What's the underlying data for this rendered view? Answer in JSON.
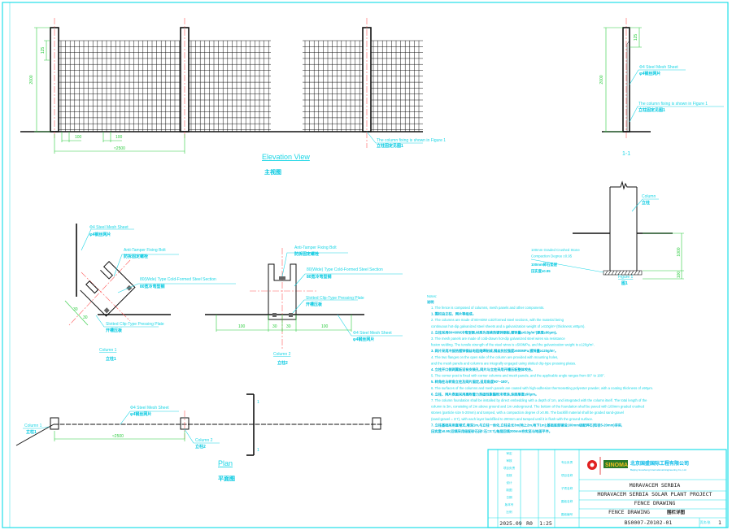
{
  "elevation": {
    "title": "Elevation View",
    "title_cn": "主视图",
    "dim_height": "2000",
    "dim_top": "125",
    "dim_grid_1": "100",
    "dim_grid_2": "100",
    "dim_span": "≈2500",
    "fixing_label": "The column fixing is shown in Figure 1",
    "fixing_label_cn": "立柱固定见图1"
  },
  "section_1_1": {
    "title": "1-1",
    "dim_height": "2000",
    "dim_top": "125",
    "mesh_label": "Φ4 Steel Mesh Sheet",
    "mesh_label_cn": "φ4钢丝网片",
    "fixing_label": "The column fixing is shown in Figure 1",
    "fixing_label_cn": "立柱固定见图1"
  },
  "figure_1": {
    "title": "Figure 1",
    "title_cn": "图1",
    "column_label": "Column",
    "column_label_cn": "立柱",
    "base_label_1": "100mm Graded Crushed Stone",
    "base_label_2": "Compaction Degree ≥0.95",
    "base_label_cn_1": "100mm碎石垫层",
    "base_label_cn_2": "压实度≥0.95",
    "dim_depth": "1000",
    "dim_base": "100"
  },
  "column_1": {
    "title": "Column 1",
    "title_cn": "立柱1",
    "mesh_label": "Φ4 Steel Mesh Sheet",
    "mesh_label_cn": "φ4钢丝网片",
    "bolt_label": "Anti-Tamper Fixing Bolt",
    "bolt_label_cn": "防拆固定螺栓",
    "section_label": "80(Wide) Type Cold-Formed Steel Section",
    "section_label_cn": "80宽冷弯型钢",
    "plate_label": "Slotted Clip-Type Pressing Plate",
    "plate_label_cn": "开槽压板",
    "dim_a": "30",
    "dim_b": "30"
  },
  "column_2": {
    "title": "Column 2",
    "title_cn": "立柱2",
    "bolt_label": "Anti-Tamper Fixing Bolt",
    "bolt_label_cn": "防拆固定螺栓",
    "section_label": "80(Wide) Type Cold-Formed Steel Section",
    "section_label_cn": "80宽冷弯型钢",
    "plate_label": "Slotted Clip-Type Pressing Plate",
    "plate_label_cn": "开槽压板",
    "mesh_label": "Φ4 Steel Mesh Sheet",
    "mesh_label_cn": "φ4钢丝网片",
    "dims": [
      "100",
      "30",
      "30",
      "100"
    ]
  },
  "plan": {
    "title": "Plan",
    "title_cn": "平面图",
    "mesh_label": "Φ4 Steel Mesh Sheet",
    "mesh_label_cn": "φ4钢丝网片",
    "column_1": "Column 1",
    "column_1_cn": "立柱1",
    "column_2": "Column 2",
    "column_2_cn": "立柱2",
    "dim_span": "≈2500",
    "section_mark": "1"
  },
  "notes": {
    "title": "Notes:",
    "title_cn": "说明",
    "lines": [
      {
        "t": "1. The fence is composed of columns, mesh panels and other components.",
        "b": false
      },
      {
        "t": "1. 围栏由立柱、网片等组成。",
        "b": true
      },
      {
        "t": "2. The columns are made of 80×60W cold-formed steel sections, with the material being",
        "b": false
      },
      {
        "t": "    continuous hot-dip galvanized steel sheets and a galvanization weight of ≥410g/m² (thickness ≥80μm).",
        "b": false
      },
      {
        "t": "2. 立柱采用80×60W冷弯型钢,材质为连续热镀锌钢板,镀锌量≥410g/m²(厚度≥80μm)。",
        "b": true
      },
      {
        "t": "3. The mesh panels are made of cold-drawn hot-dip galvanized steel wires via resistance",
        "b": false
      },
      {
        "t": "    fusion welding. The tensile strength of the steel wires is ≥500MPa, and the galvanization weight is ≥120g/m².",
        "b": false
      },
      {
        "t": "3. 网片采用冷拔热镀锌钢丝电阻熔焊制成,钢丝抗拉强度≥500MPa,镀锌量≥120g/m²。",
        "b": true
      },
      {
        "t": "4. The two flanges on the open side of the column are provided with mounting holes,",
        "b": false
      },
      {
        "t": "    and the mesh panels and columns are integrally engaged using slotted clip-type pressing plates.",
        "b": false
      },
      {
        "t": "4. 立柱开口侧两翼板设有安装孔,网片与立柱采用开槽压板整体咬合。",
        "b": true
      },
      {
        "t": "5. The corner post is fixed with corner columns and mesh panels, and the applicable angle ranges from 90° to 180°.",
        "b": false
      },
      {
        "t": "5. 转角柱与转角立柱及网片固定,适用角度90°~180°。",
        "b": true
      },
      {
        "t": "6. The surfaces of the columns and mesh panels are coated with high-adhesion thermosetting polyester powder, with a coating thickness of ≥90μm.",
        "b": false
      },
      {
        "t": "6. 立柱、网片表面采用高附着力热固性聚酯粉末喷涂,涂层厚度≥90μm。",
        "b": true
      },
      {
        "t": "7. The column foundation shall be installed by direct embedding with a depth of 1m, and integrated with the column itself. The total length of the",
        "b": false
      },
      {
        "t": "    column is 3m, consisting of 2m above ground and 1m underground. The bottom of the foundation shall be paved with 100mm graded crushed",
        "b": false
      },
      {
        "t": "    stones (particle size 5-20mm) and tamped, with a compaction degree of ≥0.95. The backfill material shall be graded sand-gravel",
        "b": false
      },
      {
        "t": "    (sand:gravel = 3:7), with each layer backfilled to 200mm and tamped until it is flush with the ground surface.",
        "b": false
      },
      {
        "t": "7. 立柱基础采用直埋式,埋深1m,与立柱一体化,立柱总长3m(地上2m,地下1m);基础底部铺设100mm级配碎石(粒径5-20mm)夯实,",
        "b": true
      },
      {
        "t": "    压实度≥0.95;回填采用级配砂石(砂:石=3:7),每层回填200mm夯实至与地面平齐。",
        "b": true
      }
    ]
  },
  "title_block": {
    "company_cn": "北京国盛国际工程有限公司",
    "company_en": "Beijing Guosheng International Engineering Co.,Ltd.",
    "logo_text": "SINOMA",
    "client": "MORAVACEM SERBIA",
    "project": "MORAVACEM SERBIA SOLAR PLANT PROJECT",
    "section": "FENCE DRAWING",
    "drawing_name": "FENCE DRAWING",
    "drawing_name_cn": "围栏详图",
    "date": "2025.09",
    "revision": "R0",
    "scale": "1:25",
    "drawing_no": "BS0007-Z0102-01",
    "sheet_label": "页次/张",
    "sheet": "1",
    "left_labels": [
      "审定",
      "审核",
      "项目负责",
      "校核",
      "设计",
      "制图",
      "日期",
      "版本号",
      "比例"
    ],
    "mid_labels": [
      "专业负责",
      "项目名称",
      "子项名称",
      "图纸名称",
      "图纸编号"
    ]
  },
  "colors": {
    "annotation": "#1ad6e6",
    "dimension": "#2ecc40",
    "centerline": "#ff5a5a",
    "geometry": "#111111",
    "frame": "#22dfe8"
  }
}
